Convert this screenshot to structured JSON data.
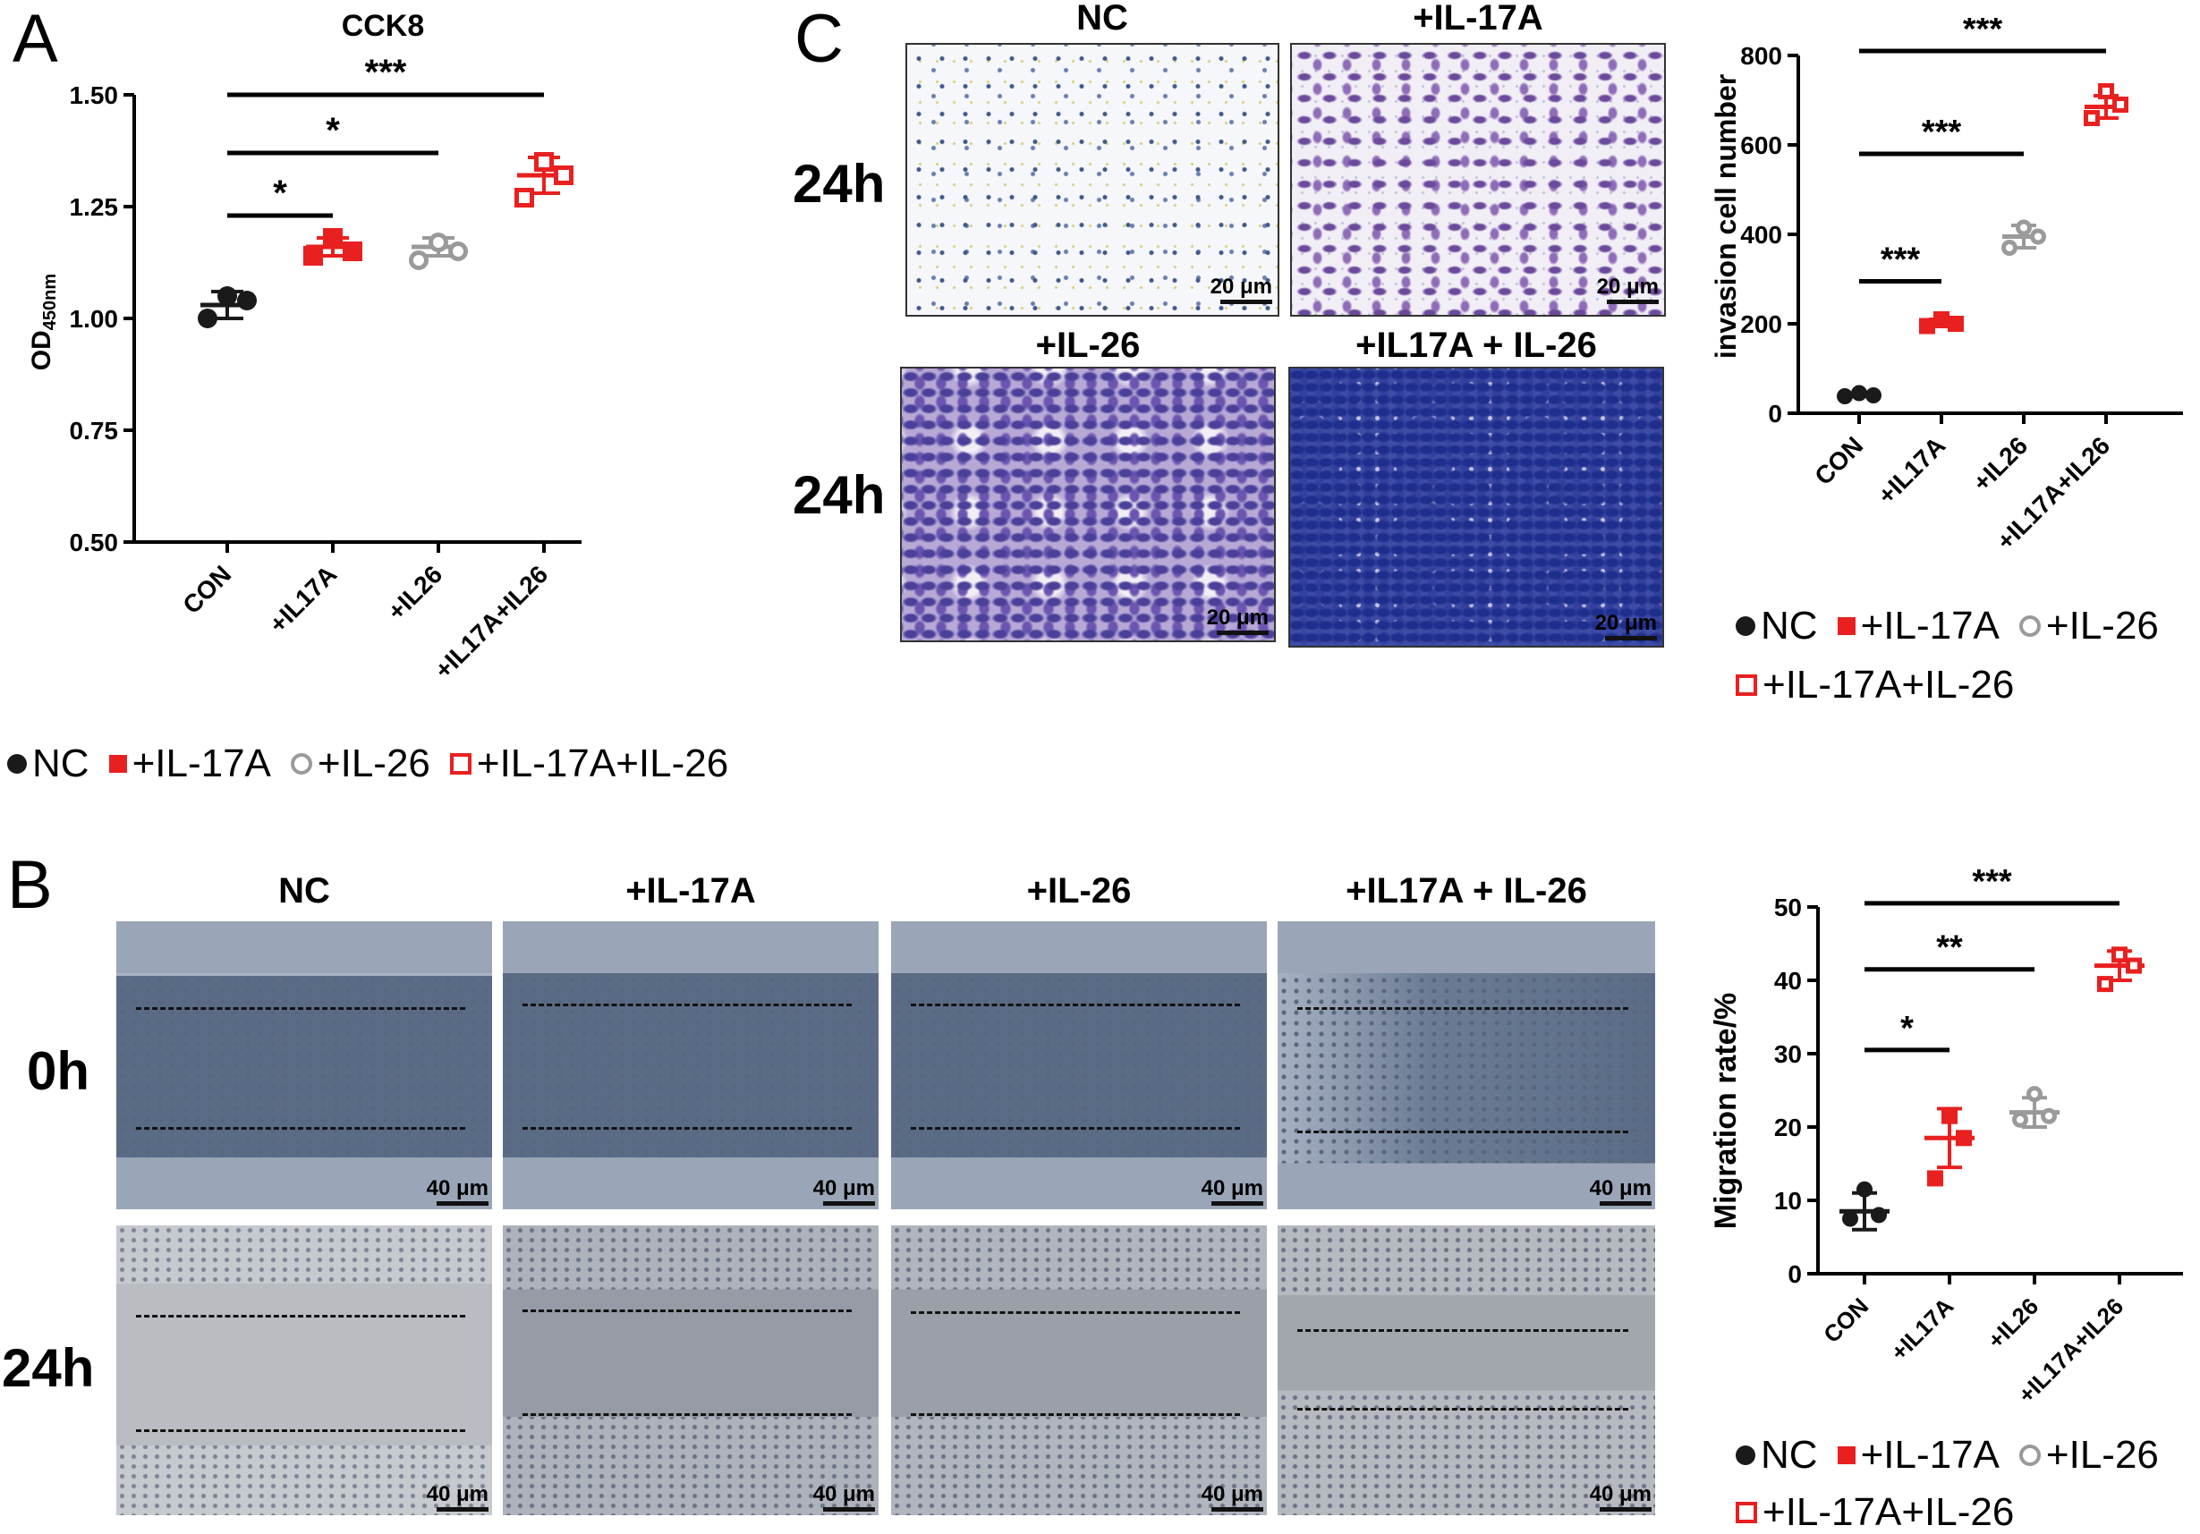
{
  "panels": {
    "a": "A",
    "b": "B",
    "c": "C"
  },
  "colors": {
    "nc": "#1a1a1a",
    "il17a": "#e8201f",
    "il26": "#9a9a9a",
    "combo": "#e8201f"
  },
  "legend": {
    "a": [
      {
        "label": "NC",
        "marker": "filled-circle"
      },
      {
        "label": "+IL-17A",
        "marker": "filled-square"
      },
      {
        "label": "+IL-26",
        "marker": "open-circle"
      },
      {
        "label": "+IL-17A+IL-26",
        "marker": "open-square"
      }
    ],
    "b": [
      {
        "label": "NC",
        "marker": "filled-circle"
      },
      {
        "label": "+IL-17A",
        "marker": "filled-square"
      },
      {
        "label": "+IL-26",
        "marker": "open-circle"
      },
      {
        "label": "+IL-17A+IL-26",
        "marker": "open-square"
      }
    ],
    "c": [
      {
        "label": "NC",
        "marker": "filled-circle"
      },
      {
        "label": "+IL-17A",
        "marker": "filled-square"
      },
      {
        "label": "+IL-26",
        "marker": "open-circle"
      },
      {
        "label": "+IL-17A+IL-26",
        "marker": "open-square"
      }
    ]
  },
  "panelB": {
    "columns": [
      "NC",
      "+IL-17A",
      "+IL-26",
      "+IL17A + IL-26"
    ],
    "rows": [
      "0h",
      "24h"
    ],
    "scale": "40 μm"
  },
  "panelC": {
    "top_captions": [
      "NC",
      "+IL-17A"
    ],
    "bottom_captions": [
      "+IL-26",
      "+IL17A + IL-26"
    ],
    "rows": [
      "24h",
      "24h"
    ],
    "scale": "20 μm"
  },
  "chart_data": [
    {
      "id": "cck8",
      "type": "scatter",
      "title": "CCK8",
      "ylabel_main": "OD",
      "ylabel_sub": "450nm",
      "xlabel": "",
      "categories": [
        "CON",
        "+IL17A",
        "+IL26",
        "+IL17A+IL26"
      ],
      "ylim": [
        0.5,
        1.5
      ],
      "yticks": [
        "0.50",
        "0.75",
        "1.00",
        "1.25",
        "1.50"
      ],
      "ytick_values": [
        0.5,
        0.75,
        1.0,
        1.25,
        1.5
      ],
      "groups": [
        {
          "category": "CON",
          "marker": "filled-circle",
          "color": "#1a1a1a",
          "points": [
            1.0,
            1.04,
            1.05
          ],
          "mean": 1.03,
          "sd": 0.03
        },
        {
          "category": "+IL17A",
          "marker": "filled-square",
          "color": "#e8201f",
          "points": [
            1.14,
            1.15,
            1.18
          ],
          "mean": 1.16,
          "sd": 0.02
        },
        {
          "category": "+IL26",
          "marker": "open-circle",
          "color": "#9a9a9a",
          "points": [
            1.13,
            1.15,
            1.17
          ],
          "mean": 1.16,
          "sd": 0.02
        },
        {
          "category": "+IL17A+IL26",
          "marker": "open-square",
          "color": "#e8201f",
          "points": [
            1.27,
            1.32,
            1.35
          ],
          "mean": 1.32,
          "sd": 0.04
        }
      ],
      "significance": [
        {
          "from": 0,
          "to": 1,
          "label": "*",
          "y": 1.23
        },
        {
          "from": 0,
          "to": 2,
          "label": "*",
          "y": 1.37
        },
        {
          "from": 0,
          "to": 3,
          "label": "***",
          "y": 1.5
        }
      ],
      "grid": false
    },
    {
      "id": "migration",
      "type": "scatter",
      "title": "",
      "ylabel": "Migration rate/%",
      "xlabel": "",
      "categories": [
        "CON",
        "+IL17A",
        "+IL26",
        "+IL17A+IL26"
      ],
      "ylim": [
        0,
        50
      ],
      "yticks": [
        "0",
        "10",
        "20",
        "30",
        "40",
        "50"
      ],
      "ytick_values": [
        0,
        10,
        20,
        30,
        40,
        50
      ],
      "groups": [
        {
          "category": "CON",
          "marker": "filled-circle",
          "color": "#1a1a1a",
          "points": [
            7.5,
            8.0,
            11.5
          ],
          "mean": 8.5,
          "sd": 2.5
        },
        {
          "category": "+IL17A",
          "marker": "filled-square",
          "color": "#e8201f",
          "points": [
            13.0,
            18.5,
            21.5
          ],
          "mean": 18.5,
          "sd": 4.0
        },
        {
          "category": "+IL26",
          "marker": "open-circle",
          "color": "#9a9a9a",
          "points": [
            21.0,
            21.5,
            24.5
          ],
          "mean": 22.0,
          "sd": 2.0
        },
        {
          "category": "+IL17A+IL26",
          "marker": "open-square",
          "color": "#e8201f",
          "points": [
            39.5,
            42.0,
            43.5
          ],
          "mean": 42.0,
          "sd": 2.0
        }
      ],
      "significance": [
        {
          "from": 0,
          "to": 1,
          "label": "*",
          "y": 30.5
        },
        {
          "from": 0,
          "to": 2,
          "label": "**",
          "y": 41.5
        },
        {
          "from": 0,
          "to": 3,
          "label": "***",
          "y": 50.5
        }
      ],
      "grid": false
    },
    {
      "id": "invasion",
      "type": "scatter",
      "title": "",
      "ylabel": "invasion cell number",
      "xlabel": "",
      "categories": [
        "CON",
        "+IL17A",
        "+IL26",
        "+IL17A+IL26"
      ],
      "ylim": [
        0,
        800
      ],
      "yticks": [
        "0",
        "200",
        "400",
        "600",
        "800"
      ],
      "ytick_values": [
        0,
        200,
        400,
        600,
        800
      ],
      "groups": [
        {
          "category": "CON",
          "marker": "filled-circle",
          "color": "#1a1a1a",
          "points": [
            38,
            40,
            45
          ],
          "mean": 41,
          "sd": 3
        },
        {
          "category": "+IL17A",
          "marker": "filled-square",
          "color": "#e8201f",
          "points": [
            195,
            200,
            210
          ],
          "mean": 202,
          "sd": 8
        },
        {
          "category": "+IL26",
          "marker": "open-circle",
          "color": "#9a9a9a",
          "points": [
            370,
            395,
            415
          ],
          "mean": 395,
          "sd": 25
        },
        {
          "category": "+IL17A+IL26",
          "marker": "open-square",
          "color": "#e8201f",
          "points": [
            660,
            690,
            720
          ],
          "mean": 685,
          "sd": 25
        }
      ],
      "significance": [
        {
          "from": 0,
          "to": 1,
          "label": "***",
          "y": 295
        },
        {
          "from": 0,
          "to": 2,
          "label": "***",
          "y": 580
        },
        {
          "from": 0,
          "to": 3,
          "label": "***",
          "y": 810
        }
      ],
      "grid": false
    }
  ]
}
